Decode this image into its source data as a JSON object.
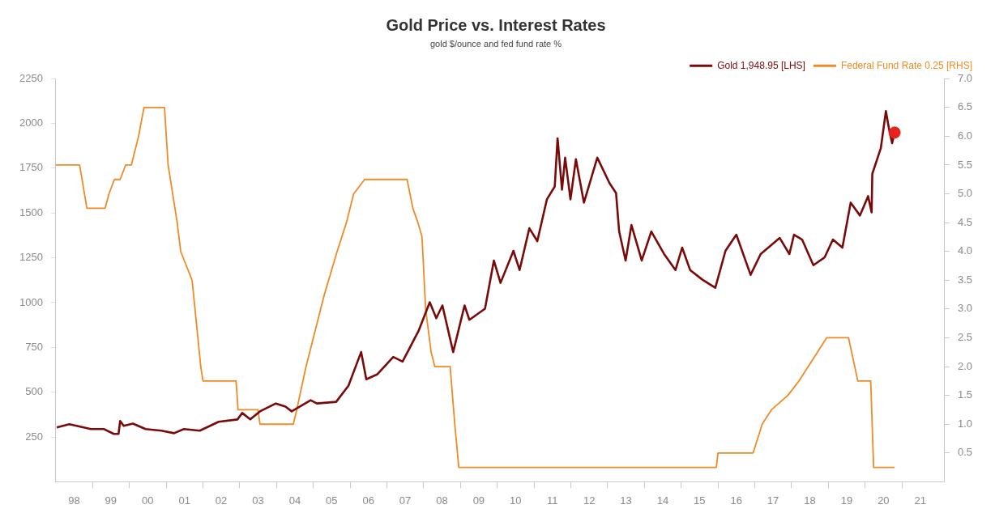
{
  "chart_data": {
    "type": "line",
    "title": "Gold Price vs. Interest Rates",
    "subtitle": "gold $/ounce and fed fund rate %",
    "xlim": [
      "1998-01-01",
      "2022-03-01"
    ],
    "xticks": [
      {
        "value": "1998-07-01",
        "label": "98"
      },
      {
        "value": "1999-01-01",
        "label": null
      },
      {
        "value": "1999-07-01",
        "label": "99"
      },
      {
        "value": "2000-01-01",
        "label": null
      },
      {
        "value": "2000-07-01",
        "label": "00"
      },
      {
        "value": "2001-01-01",
        "label": null
      },
      {
        "value": "2001-07-01",
        "label": "01"
      },
      {
        "value": "2002-01-01",
        "label": null
      },
      {
        "value": "2002-07-01",
        "label": "02"
      },
      {
        "value": "2003-01-01",
        "label": null
      },
      {
        "value": "2003-07-01",
        "label": "03"
      },
      {
        "value": "2004-01-01",
        "label": null
      },
      {
        "value": "2004-07-01",
        "label": "04"
      },
      {
        "value": "2005-01-01",
        "label": null
      },
      {
        "value": "2005-07-01",
        "label": "05"
      },
      {
        "value": "2006-01-01",
        "label": null
      },
      {
        "value": "2006-07-01",
        "label": "06"
      },
      {
        "value": "2007-01-01",
        "label": null
      },
      {
        "value": "2007-07-01",
        "label": "07"
      },
      {
        "value": "2008-01-01",
        "label": null
      },
      {
        "value": "2008-07-01",
        "label": "08"
      },
      {
        "value": "2009-01-01",
        "label": null
      },
      {
        "value": "2009-07-01",
        "label": "09"
      },
      {
        "value": "2010-01-01",
        "label": null
      },
      {
        "value": "2010-07-01",
        "label": "10"
      },
      {
        "value": "2011-01-01",
        "label": null
      },
      {
        "value": "2011-07-01",
        "label": "11"
      },
      {
        "value": "2012-01-01",
        "label": null
      },
      {
        "value": "2012-07-01",
        "label": "12"
      },
      {
        "value": "2013-01-01",
        "label": null
      },
      {
        "value": "2013-07-01",
        "label": "13"
      },
      {
        "value": "2014-01-01",
        "label": null
      },
      {
        "value": "2014-07-01",
        "label": "14"
      },
      {
        "value": "2015-01-01",
        "label": null
      },
      {
        "value": "2015-07-01",
        "label": "15"
      },
      {
        "value": "2016-01-01",
        "label": null
      },
      {
        "value": "2016-07-01",
        "label": "16"
      },
      {
        "value": "2017-01-01",
        "label": null
      },
      {
        "value": "2017-07-01",
        "label": "17"
      },
      {
        "value": "2018-01-01",
        "label": null
      },
      {
        "value": "2018-07-01",
        "label": "18"
      },
      {
        "value": "2019-01-01",
        "label": null
      },
      {
        "value": "2019-07-01",
        "label": "19"
      },
      {
        "value": "2020-01-01",
        "label": null
      },
      {
        "value": "2020-07-01",
        "label": "20"
      },
      {
        "value": "2021-01-01",
        "label": null
      },
      {
        "value": "2021-07-01",
        "label": "21"
      }
    ],
    "ylim": [
      0,
      2250
    ],
    "yticks": [
      250,
      500,
      750,
      1000,
      1250,
      1500,
      1750,
      2000,
      2250
    ],
    "y2lim": [
      0,
      7
    ],
    "y2ticks": [
      {
        "value": 0.5,
        "label": "0.5"
      },
      {
        "value": 1,
        "label": "1.0"
      },
      {
        "value": 1.5,
        "label": "1.5"
      },
      {
        "value": 2,
        "label": "2.0"
      },
      {
        "value": 2.5,
        "label": "2.5"
      },
      {
        "value": 3,
        "label": "3.0"
      },
      {
        "value": 3.5,
        "label": "3.5"
      },
      {
        "value": 4,
        "label": "4.0"
      },
      {
        "value": 4.5,
        "label": "4.5"
      },
      {
        "value": 5,
        "label": "5.0"
      },
      {
        "value": 5.5,
        "label": "5.5"
      },
      {
        "value": 6,
        "label": "6.0"
      },
      {
        "value": 6.5,
        "label": "6.5"
      },
      {
        "value": 7,
        "label": "7.0"
      }
    ],
    "grid": false,
    "legend": "top right",
    "series": [
      {
        "name": "Gold 1,948.95 [LHS]",
        "color": "#7a0a0a",
        "x": [
          "1998-01-10",
          "1998-05-15",
          "1998-12-15",
          "1999-04-25",
          "1999-07-30",
          "1999-09-15",
          "1999-10-01",
          "1999-11-05",
          "2000-02-05",
          "2000-06-10",
          "2000-11-15",
          "2001-03-20",
          "2001-06-25",
          "2001-11-30",
          "2002-06-05",
          "2002-12-10",
          "2003-01-25",
          "2003-04-15",
          "2003-07-20",
          "2003-12-25",
          "2004-03-30",
          "2004-05-30",
          "2004-12-05",
          "2005-02-05",
          "2005-08-15",
          "2005-12-15",
          "2006-04-20",
          "2006-06-10",
          "2006-09-25",
          "2007-03-05",
          "2007-06-05",
          "2007-11-10",
          "2008-03-01",
          "2008-05-05",
          "2008-07-05",
          "2008-10-20",
          "2009-02-10",
          "2009-03-30",
          "2009-09-01",
          "2009-11-28",
          "2010-02-02",
          "2010-06-10",
          "2010-08-10",
          "2010-11-15",
          "2011-02-02",
          "2011-05-08",
          "2011-07-25",
          "2011-08-22",
          "2011-10-05",
          "2011-11-05",
          "2011-12-28",
          "2012-02-20",
          "2012-05-10",
          "2012-09-20",
          "2013-01-20",
          "2013-03-25",
          "2013-04-25",
          "2013-06-28",
          "2013-08-25",
          "2013-12-05",
          "2014-03-10",
          "2014-07-15",
          "2014-11-05",
          "2015-01-10",
          "2015-03-30",
          "2015-07-30",
          "2015-12-05",
          "2016-03-15",
          "2016-07-01",
          "2016-11-20",
          "2017-02-28",
          "2017-09-05",
          "2017-12-10",
          "2018-01-25",
          "2018-04-15",
          "2018-08-05",
          "2018-11-25",
          "2019-02-15",
          "2019-05-20",
          "2019-08-10",
          "2019-11-10",
          "2020-01-30",
          "2020-03-05",
          "2020-03-12",
          "2020-06-05",
          "2020-07-25",
          "2020-08-25",
          "2020-09-25",
          "2020-10-20"
        ],
        "values": [
          303,
          321,
          294,
          294,
          267,
          267,
          339,
          312,
          325,
          294,
          285,
          271,
          294,
          285,
          335,
          348,
          384,
          348,
          393,
          437,
          420,
          393,
          455,
          437,
          446,
          536,
          724,
          572,
          599,
          697,
          671,
          841,
          1002,
          913,
          984,
          724,
          984,
          904,
          966,
          1235,
          1110,
          1289,
          1182,
          1415,
          1343,
          1576,
          1648,
          1917,
          1630,
          1809,
          1576,
          1800,
          1558,
          1809,
          1666,
          1612,
          1397,
          1235,
          1433,
          1235,
          1397,
          1271,
          1182,
          1307,
          1182,
          1128,
          1083,
          1289,
          1379,
          1155,
          1271,
          1361,
          1271,
          1379,
          1352,
          1209,
          1253,
          1352,
          1307,
          1558,
          1486,
          1594,
          1504,
          1719,
          1863,
          2069,
          1970,
          1890,
          1948.95
        ]
      },
      {
        "name": "Federal Fund Rate 0.25 [RHS]",
        "color": "#f08a24",
        "axis": "y2",
        "x": [
          "1998-01-01",
          "1998-08-25",
          "1998-11-05",
          "1999-05-05",
          "1999-06-12",
          "1999-08-05",
          "1999-10-01",
          "1999-11-25",
          "2000-01-20",
          "2000-02-25",
          "2000-04-01",
          "2000-05-25",
          "2000-12-15",
          "2001-01-20",
          "2001-04-20",
          "2001-05-25",
          "2001-07-20",
          "2001-09-15",
          "2001-12-10",
          "2002-01-01",
          "2002-11-25",
          "2002-12-15",
          "2003-07-01",
          "2003-07-20",
          "2004-06-15",
          "2004-07-20",
          "2004-10-20",
          "2005-01-01",
          "2005-04-20",
          "2005-08-25",
          "2005-11-25",
          "2006-02-05",
          "2006-05-25",
          "2007-07-20",
          "2007-09-15",
          "2007-11-05",
          "2007-12-15",
          "2008-01-20",
          "2008-03-15",
          "2008-04-20",
          "2008-09-20",
          "2008-11-05",
          "2008-12-15",
          "2015-12-15",
          "2016-01-01",
          "2016-12-15",
          "2017-03-15",
          "2017-06-15",
          "2017-11-25",
          "2018-03-15",
          "2018-06-15",
          "2018-09-15",
          "2018-12-15",
          "2019-07-20",
          "2019-10-20",
          "2020-02-25",
          "2020-03-25",
          "2020-10-20"
        ],
        "values": [
          5.5,
          5.5,
          4.75,
          4.75,
          5.0,
          5.25,
          5.25,
          5.5,
          5.5,
          5.75,
          6.0,
          6.5,
          6.5,
          5.5,
          4.5,
          4.0,
          3.75,
          3.5,
          2.0,
          1.75,
          1.75,
          1.25,
          1.25,
          1.0,
          1.0,
          1.25,
          2.0,
          2.5,
          3.25,
          4.0,
          4.5,
          5.0,
          5.25,
          5.25,
          4.75,
          4.5,
          4.25,
          3.0,
          2.25,
          2.0,
          2.0,
          1.0,
          0.25,
          0.25,
          0.5,
          0.5,
          1.0,
          1.25,
          1.5,
          1.75,
          2.0,
          2.25,
          2.5,
          2.5,
          1.75,
          1.75,
          0.25,
          0.25
        ]
      },
      {
        "type": "scatter",
        "color": "#e8201e",
        "marker": "circle",
        "x": [
          "2020-10-20"
        ],
        "values": [
          1948.95
        ]
      }
    ]
  }
}
